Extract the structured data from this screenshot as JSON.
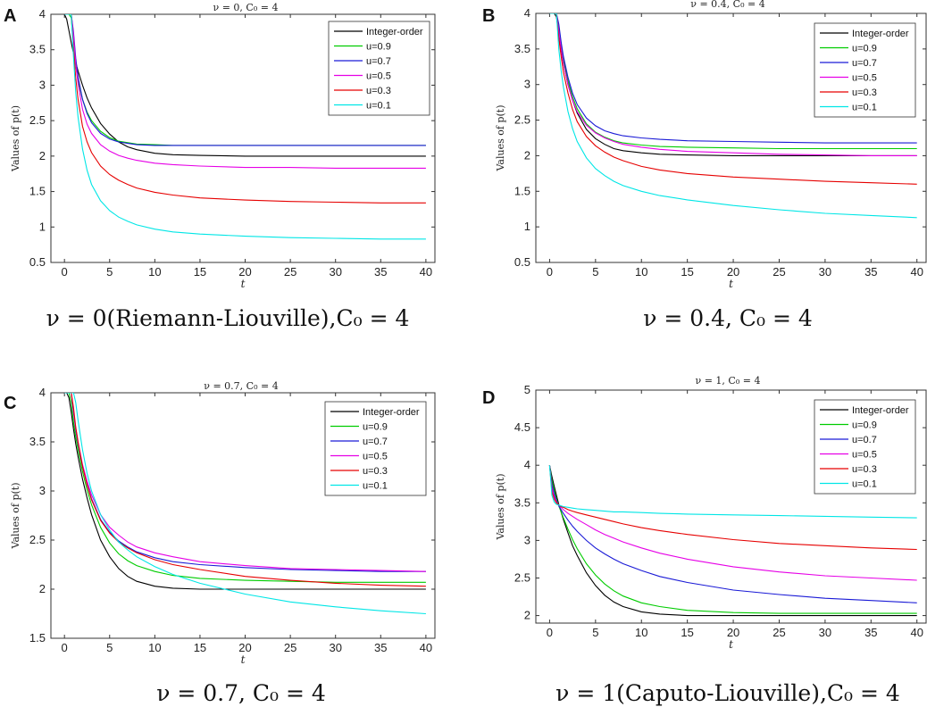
{
  "figure": {
    "colors": {
      "Integer-order": "#000000",
      "u=0.9": "#00cc00",
      "u=0.7": "#1a1ad6",
      "u=0.5": "#e600e6",
      "u=0.3": "#e60000",
      "u=0.1": "#00e6e6"
    }
  },
  "chart_data": [
    {
      "letter": "A",
      "type": "line",
      "title": "ν = 0, C₀ = 4",
      "caption": "ν = 0(Riemann-Liouville),C₀ = 4",
      "xlabel": "t",
      "ylabel": "Values of p(t)",
      "xlim": [
        -1.5,
        41
      ],
      "ylim": [
        0.5,
        4
      ],
      "xticks": [
        0,
        5,
        10,
        15,
        20,
        25,
        30,
        35,
        40
      ],
      "yticks": [
        0.5,
        1,
        1.5,
        2,
        2.5,
        3,
        3.5,
        4
      ],
      "ytick_labels": [
        "0.5",
        "1",
        "1.5",
        "2",
        "2.5",
        "3",
        "3.5",
        "4"
      ],
      "legend": [
        "Integer-order",
        "u=0.9",
        "u=0.7",
        "u=0.5",
        "u=0.3",
        "u=0.1"
      ],
      "x": [
        0,
        0.25,
        0.5,
        0.75,
        1,
        1.25,
        1.5,
        2,
        2.5,
        3,
        4,
        5,
        6,
        7,
        8,
        10,
        12,
        15,
        20,
        25,
        30,
        35,
        40
      ],
      "series": [
        {
          "name": "Integer-order",
          "values": [
            4.0,
            3.93,
            3.77,
            3.6,
            3.45,
            3.32,
            3.2,
            3.0,
            2.82,
            2.68,
            2.46,
            2.31,
            2.2,
            2.13,
            2.09,
            2.04,
            2.02,
            2.01,
            2.0,
            2.0,
            2.0,
            2.0,
            2.0
          ]
        },
        {
          "name": "u=0.9",
          "values": [
            4.0,
            4.0,
            4.0,
            3.95,
            3.55,
            3.27,
            3.07,
            2.8,
            2.62,
            2.5,
            2.35,
            2.26,
            2.21,
            2.19,
            2.17,
            2.16,
            2.15,
            2.15,
            2.15,
            2.15,
            2.15,
            2.15,
            2.15
          ]
        },
        {
          "name": "u=0.7",
          "values": [
            4.0,
            4.0,
            4.0,
            4.0,
            3.75,
            3.38,
            3.12,
            2.8,
            2.6,
            2.47,
            2.32,
            2.24,
            2.2,
            2.18,
            2.16,
            2.15,
            2.15,
            2.15,
            2.15,
            2.15,
            2.15,
            2.15,
            2.15
          ]
        },
        {
          "name": "u=0.5",
          "values": [
            4.0,
            4.0,
            4.0,
            4.0,
            3.7,
            3.3,
            3.02,
            2.66,
            2.45,
            2.32,
            2.16,
            2.07,
            2.01,
            1.97,
            1.94,
            1.9,
            1.88,
            1.86,
            1.84,
            1.84,
            1.83,
            1.83,
            1.83
          ]
        },
        {
          "name": "u=0.3",
          "values": [
            4.0,
            4.0,
            4.0,
            4.0,
            3.5,
            3.1,
            2.8,
            2.42,
            2.2,
            2.05,
            1.86,
            1.74,
            1.66,
            1.6,
            1.55,
            1.49,
            1.45,
            1.41,
            1.38,
            1.36,
            1.35,
            1.34,
            1.34
          ]
        },
        {
          "name": "u=0.1",
          "values": [
            4.0,
            4.0,
            4.0,
            4.0,
            3.4,
            2.9,
            2.55,
            2.1,
            1.8,
            1.6,
            1.37,
            1.23,
            1.14,
            1.08,
            1.03,
            0.97,
            0.93,
            0.9,
            0.87,
            0.85,
            0.84,
            0.83,
            0.83
          ]
        }
      ]
    },
    {
      "letter": "B",
      "type": "line",
      "title": "ν = 0.4, C₀ = 4",
      "caption": "ν = 0.4, C₀ = 4",
      "xlabel": "t",
      "ylabel": "Values of p(t)",
      "xlim": [
        -1.5,
        41
      ],
      "ylim": [
        0.5,
        4
      ],
      "xticks": [
        0,
        5,
        10,
        15,
        20,
        25,
        30,
        35,
        40
      ],
      "yticks": [
        0.5,
        1,
        1.5,
        2,
        2.5,
        3,
        3.5,
        4
      ],
      "ytick_labels": [
        "0.5",
        "1",
        "1.5",
        "2",
        "2.5",
        "3",
        "3.5",
        "4"
      ],
      "legend": [
        "Integer-order",
        "u=0.9",
        "u=0.7",
        "u=0.5",
        "u=0.3",
        "u=0.1"
      ],
      "x": [
        0,
        0.25,
        0.5,
        0.75,
        1,
        1.25,
        1.5,
        2,
        2.5,
        3,
        4,
        5,
        6,
        7,
        8,
        10,
        12,
        15,
        20,
        25,
        30,
        35,
        40
      ],
      "series": [
        {
          "name": "Integer-order",
          "values": [
            4.0,
            4.0,
            4.0,
            3.95,
            3.7,
            3.48,
            3.3,
            3.0,
            2.78,
            2.6,
            2.37,
            2.24,
            2.16,
            2.1,
            2.07,
            2.04,
            2.02,
            2.01,
            2.0,
            2.0,
            2.0,
            2.0,
            2.0
          ]
        },
        {
          "name": "u=0.9",
          "values": [
            4.0,
            4.0,
            4.0,
            4.0,
            3.8,
            3.55,
            3.35,
            3.05,
            2.83,
            2.66,
            2.45,
            2.33,
            2.26,
            2.21,
            2.18,
            2.15,
            2.13,
            2.12,
            2.11,
            2.1,
            2.1,
            2.1,
            2.1
          ]
        },
        {
          "name": "u=0.7",
          "values": [
            4.0,
            4.0,
            4.0,
            4.0,
            3.85,
            3.6,
            3.4,
            3.1,
            2.88,
            2.72,
            2.53,
            2.42,
            2.35,
            2.31,
            2.28,
            2.25,
            2.23,
            2.21,
            2.2,
            2.19,
            2.18,
            2.18,
            2.18
          ]
        },
        {
          "name": "u=0.5",
          "values": [
            4.0,
            4.0,
            4.0,
            4.0,
            3.75,
            3.5,
            3.3,
            3.0,
            2.78,
            2.62,
            2.43,
            2.32,
            2.25,
            2.2,
            2.16,
            2.12,
            2.09,
            2.06,
            2.04,
            2.02,
            2.01,
            2.0,
            2.0
          ]
        },
        {
          "name": "u=0.3",
          "values": [
            4.0,
            4.0,
            4.0,
            4.0,
            3.65,
            3.4,
            3.18,
            2.88,
            2.65,
            2.48,
            2.27,
            2.14,
            2.05,
            1.98,
            1.93,
            1.85,
            1.8,
            1.75,
            1.7,
            1.67,
            1.64,
            1.62,
            1.6
          ]
        },
        {
          "name": "u=0.1",
          "values": [
            4.0,
            4.0,
            4.0,
            4.0,
            3.5,
            3.2,
            2.97,
            2.62,
            2.38,
            2.2,
            1.97,
            1.82,
            1.72,
            1.64,
            1.58,
            1.5,
            1.44,
            1.38,
            1.3,
            1.24,
            1.19,
            1.16,
            1.13
          ]
        }
      ]
    },
    {
      "letter": "C",
      "type": "line",
      "title": "ν = 0.7, C₀ = 4",
      "caption": "ν = 0.7, C₀ = 4",
      "xlabel": "t",
      "ylabel": "Values of p(t)",
      "xlim": [
        -1.5,
        41
      ],
      "ylim": [
        1.5,
        4
      ],
      "xticks": [
        0,
        5,
        10,
        15,
        20,
        25,
        30,
        35,
        40
      ],
      "yticks": [
        1.5,
        2,
        2.5,
        3,
        3.5,
        4
      ],
      "ytick_labels": [
        "1.5",
        "2",
        "2.5",
        "3",
        "3.5",
        "4"
      ],
      "legend": [
        "Integer-order",
        "u=0.9",
        "u=0.7",
        "u=0.5",
        "u=0.3",
        "u=0.1"
      ],
      "x": [
        0,
        0.25,
        0.5,
        0.75,
        1,
        1.25,
        1.5,
        2,
        2.5,
        3,
        4,
        5,
        6,
        7,
        8,
        10,
        12,
        15,
        20,
        25,
        30,
        35,
        40
      ],
      "series": [
        {
          "name": "Integer-order",
          "values": [
            4.0,
            4.0,
            3.95,
            3.8,
            3.63,
            3.48,
            3.35,
            3.12,
            2.93,
            2.76,
            2.5,
            2.33,
            2.21,
            2.13,
            2.08,
            2.03,
            2.01,
            2.0,
            2.0,
            2.0,
            2.0,
            2.0,
            2.0
          ]
        },
        {
          "name": "u=0.9",
          "values": [
            4.0,
            4.0,
            4.0,
            3.9,
            3.7,
            3.55,
            3.42,
            3.2,
            3.01,
            2.86,
            2.63,
            2.47,
            2.36,
            2.29,
            2.24,
            2.18,
            2.14,
            2.11,
            2.09,
            2.08,
            2.07,
            2.07,
            2.07
          ]
        },
        {
          "name": "u=0.7",
          "values": [
            4.0,
            4.0,
            4.0,
            4.0,
            3.8,
            3.62,
            3.48,
            3.25,
            3.07,
            2.92,
            2.71,
            2.58,
            2.49,
            2.43,
            2.38,
            2.32,
            2.28,
            2.25,
            2.22,
            2.2,
            2.19,
            2.18,
            2.18
          ]
        },
        {
          "name": "u=0.5",
          "values": [
            4.0,
            4.0,
            4.0,
            4.0,
            3.82,
            3.64,
            3.5,
            3.27,
            3.1,
            2.96,
            2.76,
            2.63,
            2.55,
            2.48,
            2.43,
            2.37,
            2.33,
            2.28,
            2.24,
            2.21,
            2.2,
            2.19,
            2.18
          ]
        },
        {
          "name": "u=0.3",
          "values": [
            4.0,
            4.0,
            4.0,
            4.0,
            3.85,
            3.65,
            3.5,
            3.25,
            3.06,
            2.91,
            2.7,
            2.57,
            2.48,
            2.42,
            2.37,
            2.3,
            2.25,
            2.2,
            2.13,
            2.09,
            2.06,
            2.04,
            2.03
          ]
        },
        {
          "name": "u=0.1",
          "values": [
            4.0,
            4.0,
            4.0,
            4.0,
            4.0,
            3.9,
            3.72,
            3.42,
            3.18,
            3.0,
            2.76,
            2.6,
            2.48,
            2.4,
            2.33,
            2.23,
            2.15,
            2.06,
            1.95,
            1.87,
            1.82,
            1.78,
            1.75
          ]
        }
      ]
    },
    {
      "letter": "D",
      "type": "line",
      "title": "ν = 1, C₀ = 4",
      "caption": "ν = 1(Caputo-Liouville),C₀ = 4",
      "xlabel": "t",
      "ylabel": "Values of p(t)",
      "xlim": [
        -1.5,
        41
      ],
      "ylim": [
        1.9,
        5
      ],
      "xticks": [
        0,
        5,
        10,
        15,
        20,
        25,
        30,
        35,
        40
      ],
      "yticks": [
        2,
        2.5,
        3,
        3.5,
        4,
        4.5,
        5
      ],
      "ytick_labels": [
        "2",
        "2.5",
        "3",
        "3.5",
        "4",
        "4.5",
        "5"
      ],
      "legend": [
        "Integer-order",
        "u=0.9",
        "u=0.7",
        "u=0.5",
        "u=0.3",
        "u=0.1"
      ],
      "x": [
        0,
        0.25,
        0.5,
        0.75,
        1,
        1.25,
        1.5,
        2,
        2.5,
        3,
        4,
        5,
        6,
        7,
        8,
        10,
        12,
        15,
        20,
        25,
        30,
        35,
        40
      ],
      "series": [
        {
          "name": "Integer-order",
          "values": [
            4.0,
            3.85,
            3.72,
            3.6,
            3.48,
            3.38,
            3.28,
            3.1,
            2.93,
            2.8,
            2.57,
            2.4,
            2.27,
            2.18,
            2.12,
            2.05,
            2.02,
            2.0,
            2.0,
            2.0,
            2.0,
            2.0,
            2.0
          ]
        },
        {
          "name": "u=0.9",
          "values": [
            4.0,
            3.8,
            3.66,
            3.55,
            3.46,
            3.38,
            3.3,
            3.15,
            3.01,
            2.89,
            2.69,
            2.54,
            2.42,
            2.33,
            2.26,
            2.17,
            2.12,
            2.07,
            2.04,
            2.03,
            2.03,
            2.03,
            2.03
          ]
        },
        {
          "name": "u=0.7",
          "values": [
            4.0,
            3.75,
            3.62,
            3.53,
            3.46,
            3.41,
            3.36,
            3.27,
            3.19,
            3.12,
            3.0,
            2.9,
            2.82,
            2.75,
            2.69,
            2.6,
            2.52,
            2.44,
            2.34,
            2.28,
            2.23,
            2.2,
            2.17
          ]
        },
        {
          "name": "u=0.5",
          "values": [
            4.0,
            3.7,
            3.58,
            3.51,
            3.47,
            3.44,
            3.41,
            3.36,
            3.32,
            3.28,
            3.21,
            3.14,
            3.08,
            3.03,
            2.98,
            2.9,
            2.83,
            2.75,
            2.65,
            2.58,
            2.53,
            2.5,
            2.47
          ]
        },
        {
          "name": "u=0.3",
          "values": [
            4.0,
            3.65,
            3.55,
            3.5,
            3.47,
            3.45,
            3.44,
            3.41,
            3.39,
            3.37,
            3.34,
            3.31,
            3.28,
            3.25,
            3.22,
            3.17,
            3.13,
            3.08,
            3.01,
            2.96,
            2.93,
            2.9,
            2.88
          ]
        },
        {
          "name": "u=0.1",
          "values": [
            4.0,
            3.6,
            3.51,
            3.48,
            3.47,
            3.46,
            3.45,
            3.44,
            3.43,
            3.42,
            3.41,
            3.4,
            3.39,
            3.38,
            3.38,
            3.37,
            3.36,
            3.35,
            3.34,
            3.33,
            3.32,
            3.31,
            3.3
          ]
        }
      ]
    }
  ]
}
